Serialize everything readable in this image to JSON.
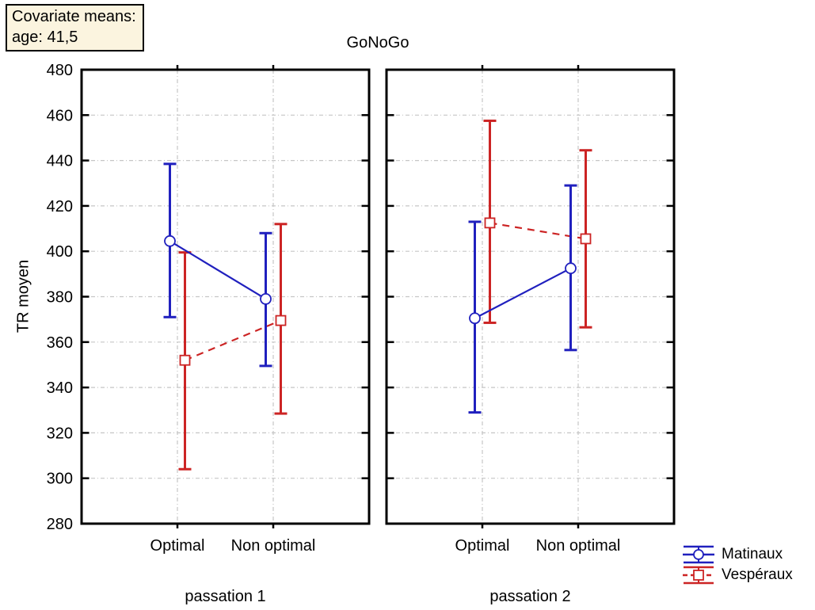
{
  "annotation_box": {
    "line1": "Covariate means:",
    "line2": "age: 41,5"
  },
  "colors": {
    "matinaux_blue": "#2020BE",
    "vesperaux_red": "#CC2424",
    "grid_gray": "#C6C6C6",
    "frame_black": "#000000",
    "annotation_bg": "#FBF4DF",
    "background": "#FFFFFF"
  },
  "chart_data": {
    "type": "line",
    "subtype": "category-means-with-error-bars",
    "title": "GoNoGo",
    "ylabel": "TR moyen",
    "ylim": [
      280,
      480
    ],
    "ytick_step": 20,
    "grid": true,
    "categories": [
      "Optimal",
      "Non optimal"
    ],
    "series_meta": [
      {
        "name": "Matinaux",
        "color_key": "matinaux_blue",
        "marker": "circle",
        "line_style": "solid"
      },
      {
        "name": "Vespéraux",
        "color_key": "vesperaux_red",
        "marker": "square",
        "line_style": "dashed"
      }
    ],
    "panels": [
      {
        "label": "passation 1",
        "series": [
          {
            "name": "Matinaux",
            "means": [
              404.5,
              379.0
            ],
            "lower": [
              371.0,
              349.5
            ],
            "upper": [
              438.5,
              408.0
            ]
          },
          {
            "name": "Vespéraux",
            "means": [
              352.0,
              369.5
            ],
            "lower": [
              304.0,
              328.5
            ],
            "upper": [
              399.5,
              412.0
            ]
          }
        ]
      },
      {
        "label": "passation 2",
        "series": [
          {
            "name": "Matinaux",
            "means": [
              370.5,
              392.5
            ],
            "lower": [
              329.0,
              356.5
            ],
            "upper": [
              413.0,
              429.0
            ]
          },
          {
            "name": "Vespéraux",
            "means": [
              412.5,
              405.5
            ],
            "lower": [
              368.5,
              366.5
            ],
            "upper": [
              457.5,
              444.5
            ]
          }
        ]
      }
    ],
    "legend_position": "bottom-right"
  },
  "legend": {
    "items": [
      {
        "label": "Matinaux"
      },
      {
        "label": "Vespéraux"
      }
    ]
  }
}
